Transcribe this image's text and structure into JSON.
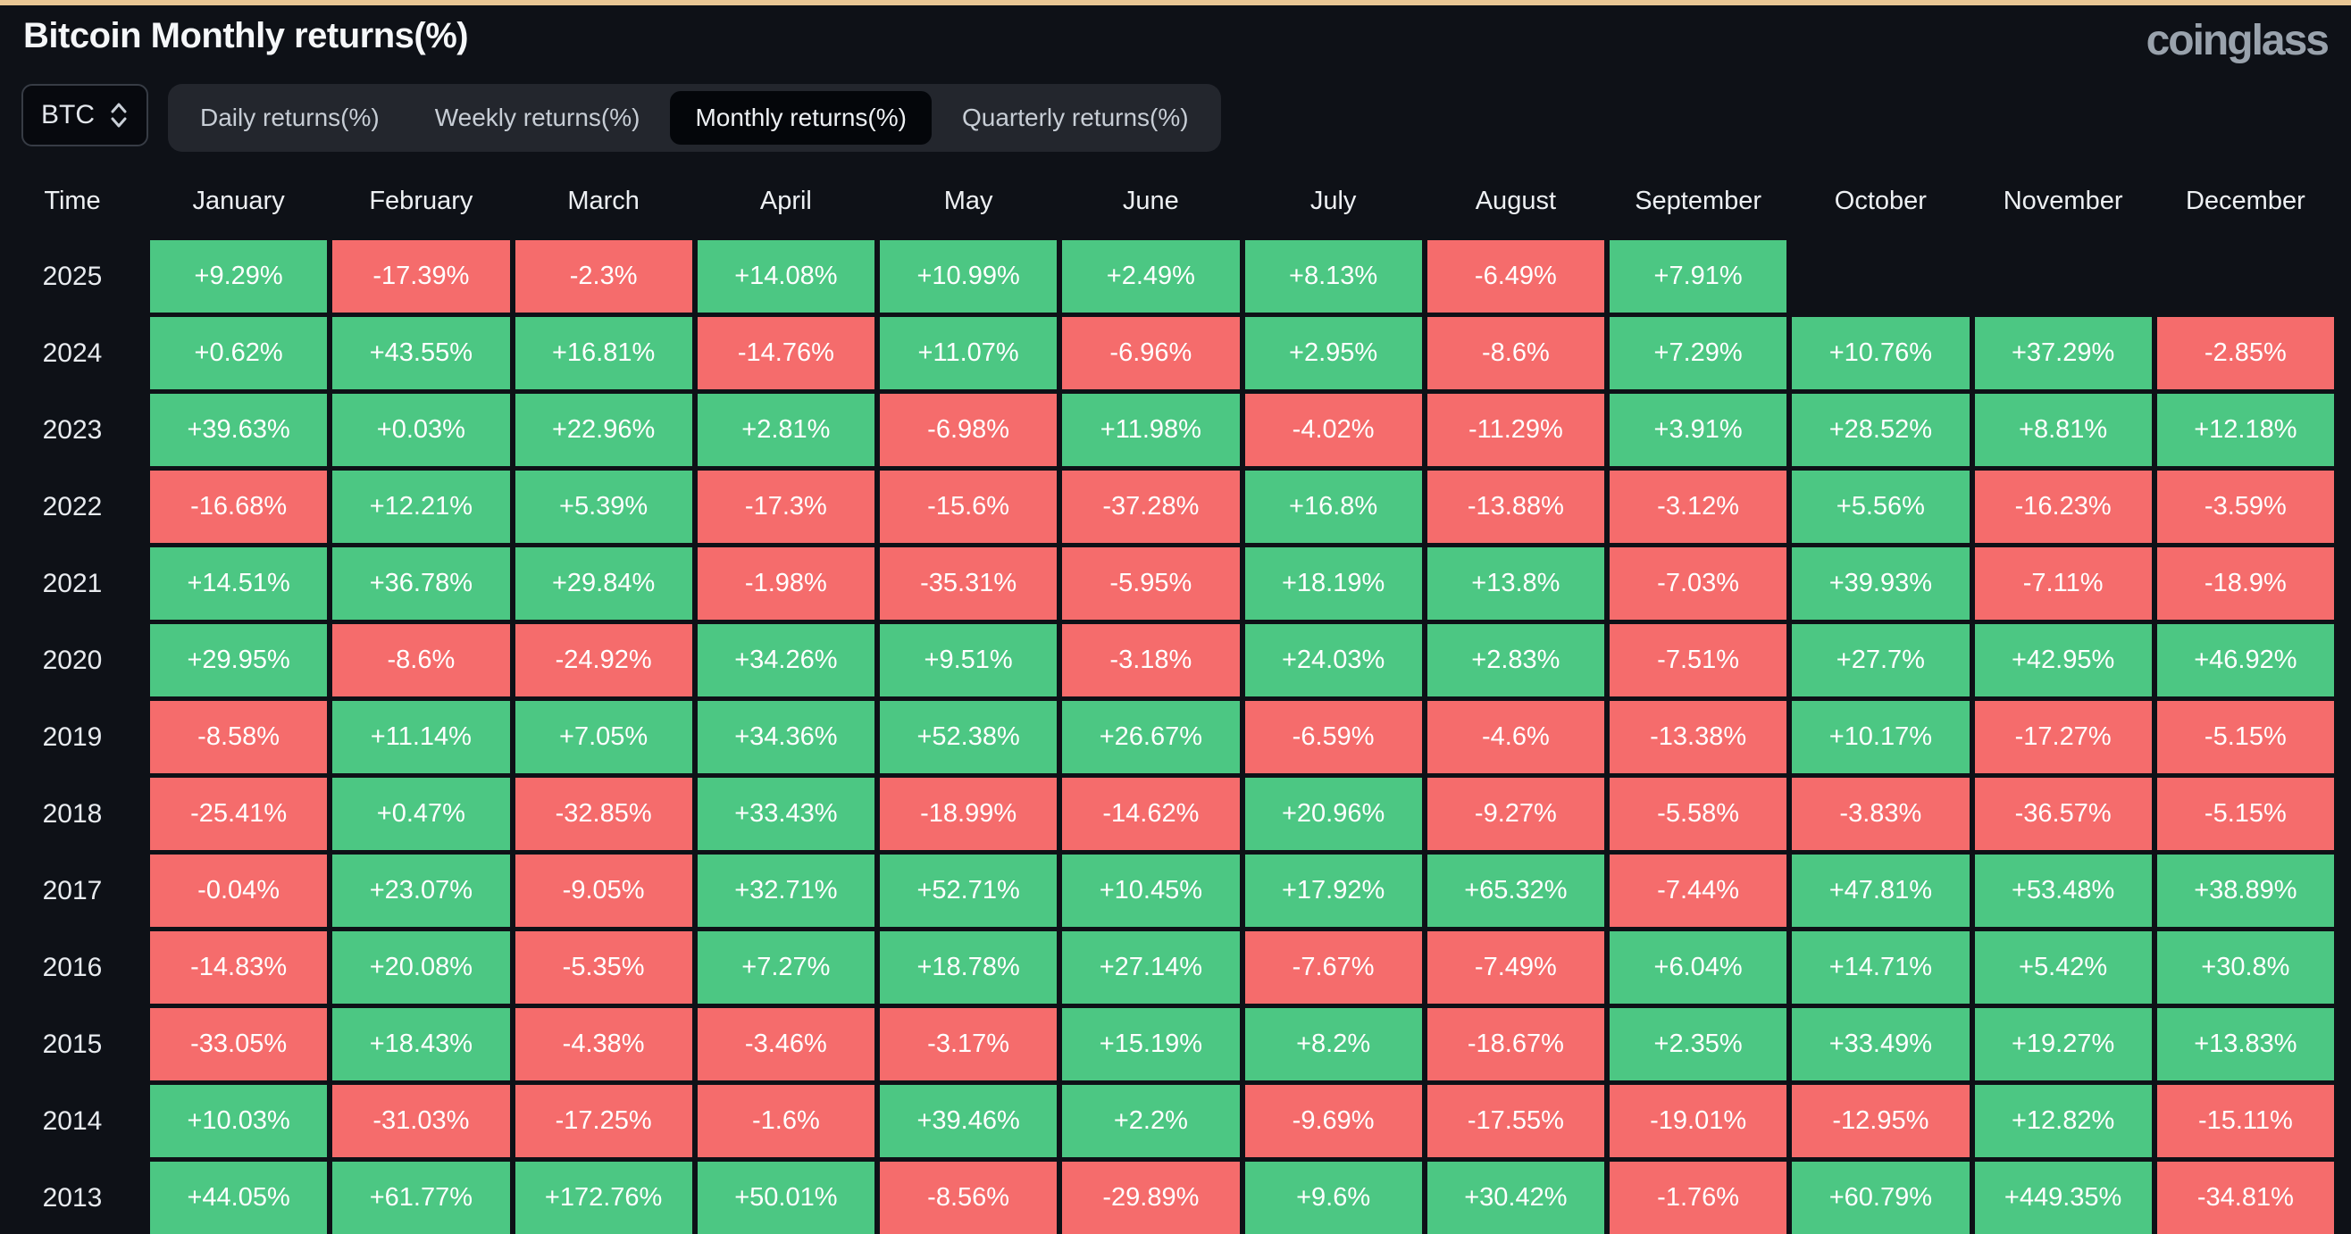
{
  "header": {
    "title": "Bitcoin Monthly returns(%)",
    "brand": "coinglass"
  },
  "controls": {
    "coin_selector": {
      "value": "BTC"
    },
    "tabs": [
      {
        "label": "Daily returns(%)",
        "active": false
      },
      {
        "label": "Weekly returns(%)",
        "active": false
      },
      {
        "label": "Monthly returns(%)",
        "active": true
      },
      {
        "label": "Quarterly returns(%)",
        "active": false
      }
    ]
  },
  "colors": {
    "positive": "#4cc783",
    "negative": "#f56c6c",
    "top_accent": "#e9c795",
    "background": "#0e1117"
  },
  "chart_data": {
    "type": "heatmap",
    "title": "Bitcoin Monthly returns(%)",
    "columns": [
      "Time",
      "January",
      "February",
      "March",
      "April",
      "May",
      "June",
      "July",
      "August",
      "September",
      "October",
      "November",
      "December"
    ],
    "rows": [
      {
        "year": "2025",
        "values": [
          "+9.29%",
          "-17.39%",
          "-2.3%",
          "+14.08%",
          "+10.99%",
          "+2.49%",
          "+8.13%",
          "-6.49%",
          "+7.91%",
          "",
          "",
          ""
        ]
      },
      {
        "year": "2024",
        "values": [
          "+0.62%",
          "+43.55%",
          "+16.81%",
          "-14.76%",
          "+11.07%",
          "-6.96%",
          "+2.95%",
          "-8.6%",
          "+7.29%",
          "+10.76%",
          "+37.29%",
          "-2.85%"
        ]
      },
      {
        "year": "2023",
        "values": [
          "+39.63%",
          "+0.03%",
          "+22.96%",
          "+2.81%",
          "-6.98%",
          "+11.98%",
          "-4.02%",
          "-11.29%",
          "+3.91%",
          "+28.52%",
          "+8.81%",
          "+12.18%"
        ]
      },
      {
        "year": "2022",
        "values": [
          "-16.68%",
          "+12.21%",
          "+5.39%",
          "-17.3%",
          "-15.6%",
          "-37.28%",
          "+16.8%",
          "-13.88%",
          "-3.12%",
          "+5.56%",
          "-16.23%",
          "-3.59%"
        ]
      },
      {
        "year": "2021",
        "values": [
          "+14.51%",
          "+36.78%",
          "+29.84%",
          "-1.98%",
          "-35.31%",
          "-5.95%",
          "+18.19%",
          "+13.8%",
          "-7.03%",
          "+39.93%",
          "-7.11%",
          "-18.9%"
        ]
      },
      {
        "year": "2020",
        "values": [
          "+29.95%",
          "-8.6%",
          "-24.92%",
          "+34.26%",
          "+9.51%",
          "-3.18%",
          "+24.03%",
          "+2.83%",
          "-7.51%",
          "+27.7%",
          "+42.95%",
          "+46.92%"
        ]
      },
      {
        "year": "2019",
        "values": [
          "-8.58%",
          "+11.14%",
          "+7.05%",
          "+34.36%",
          "+52.38%",
          "+26.67%",
          "-6.59%",
          "-4.6%",
          "-13.38%",
          "+10.17%",
          "-17.27%",
          "-5.15%"
        ]
      },
      {
        "year": "2018",
        "values": [
          "-25.41%",
          "+0.47%",
          "-32.85%",
          "+33.43%",
          "-18.99%",
          "-14.62%",
          "+20.96%",
          "-9.27%",
          "-5.58%",
          "-3.83%",
          "-36.57%",
          "-5.15%"
        ]
      },
      {
        "year": "2017",
        "values": [
          "-0.04%",
          "+23.07%",
          "-9.05%",
          "+32.71%",
          "+52.71%",
          "+10.45%",
          "+17.92%",
          "+65.32%",
          "-7.44%",
          "+47.81%",
          "+53.48%",
          "+38.89%"
        ]
      },
      {
        "year": "2016",
        "values": [
          "-14.83%",
          "+20.08%",
          "-5.35%",
          "+7.27%",
          "+18.78%",
          "+27.14%",
          "-7.67%",
          "-7.49%",
          "+6.04%",
          "+14.71%",
          "+5.42%",
          "+30.8%"
        ]
      },
      {
        "year": "2015",
        "values": [
          "-33.05%",
          "+18.43%",
          "-4.38%",
          "-3.46%",
          "-3.17%",
          "+15.19%",
          "+8.2%",
          "-18.67%",
          "+2.35%",
          "+33.49%",
          "+19.27%",
          "+13.83%"
        ]
      },
      {
        "year": "2014",
        "values": [
          "+10.03%",
          "-31.03%",
          "-17.25%",
          "-1.6%",
          "+39.46%",
          "+2.2%",
          "-9.69%",
          "-17.55%",
          "-19.01%",
          "-12.95%",
          "+12.82%",
          "-15.11%"
        ]
      },
      {
        "year": "2013",
        "values": [
          "+44.05%",
          "+61.77%",
          "+172.76%",
          "+50.01%",
          "-8.56%",
          "-29.89%",
          "+9.6%",
          "+30.42%",
          "-1.76%",
          "+60.79%",
          "+449.35%",
          "-34.81%"
        ]
      }
    ]
  }
}
